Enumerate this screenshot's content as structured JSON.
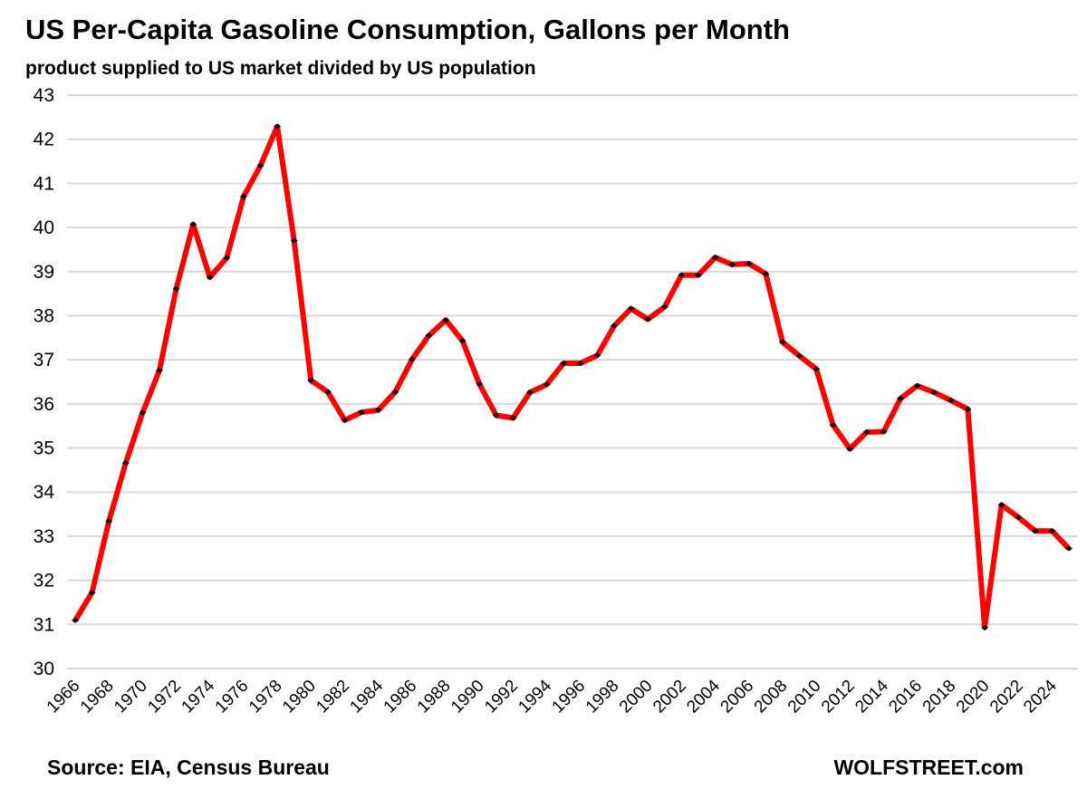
{
  "chart_data": {
    "type": "line",
    "title": "US Per-Capita Gasoline Consumption, Gallons per Month",
    "subtitle": "product supplied to US market divided by US population",
    "xlabel": "",
    "ylabel": "",
    "ylim": [
      30,
      43
    ],
    "yticks": [
      30,
      31,
      32,
      33,
      34,
      35,
      36,
      37,
      38,
      39,
      40,
      41,
      42,
      43
    ],
    "xlim": [
      1966,
      2025
    ],
    "xticks": [
      1966,
      1968,
      1970,
      1972,
      1974,
      1976,
      1978,
      1980,
      1982,
      1984,
      1986,
      1988,
      1990,
      1992,
      1994,
      1996,
      1998,
      2000,
      2002,
      2004,
      2006,
      2008,
      2010,
      2012,
      2014,
      2016,
      2018,
      2020,
      2022,
      2024
    ],
    "grid": "horizontal",
    "legend": "none",
    "series": [
      {
        "color": "#ff0000",
        "marker_color": "#000000",
        "x": [
          1966,
          1967,
          1968,
          1969,
          1970,
          1971,
          1972,
          1973,
          1974,
          1975,
          1976,
          1977,
          1978,
          1979,
          1980,
          1981,
          1982,
          1983,
          1984,
          1985,
          1986,
          1987,
          1988,
          1989,
          1990,
          1991,
          1992,
          1993,
          1994,
          1995,
          1996,
          1997,
          1998,
          1999,
          2000,
          2001,
          2002,
          2003,
          2004,
          2005,
          2006,
          2007,
          2008,
          2009,
          2010,
          2011,
          2012,
          2013,
          2014,
          2015,
          2016,
          2017,
          2018,
          2019,
          2020,
          2021,
          2022,
          2023,
          2024,
          2025
        ],
        "values": [
          31.09,
          31.72,
          33.34,
          34.66,
          35.8,
          36.76,
          38.61,
          40.07,
          38.87,
          39.31,
          40.7,
          41.4,
          42.29,
          39.7,
          36.53,
          36.27,
          35.63,
          35.81,
          35.86,
          36.27,
          37.01,
          37.55,
          37.9,
          37.43,
          36.45,
          35.74,
          35.68,
          36.26,
          36.44,
          36.92,
          36.92,
          37.1,
          37.77,
          38.16,
          37.92,
          38.2,
          38.92,
          38.92,
          39.32,
          39.16,
          39.18,
          38.95,
          37.4,
          37.09,
          36.79,
          35.52,
          34.98,
          35.36,
          35.37,
          36.12,
          36.41,
          36.26,
          36.08,
          35.88,
          30.93,
          33.71,
          33.43,
          33.12,
          33.12,
          32.72
        ]
      }
    ],
    "source": "Source: EIA, Census Bureau",
    "credit": "WOLFSTREET.com"
  }
}
